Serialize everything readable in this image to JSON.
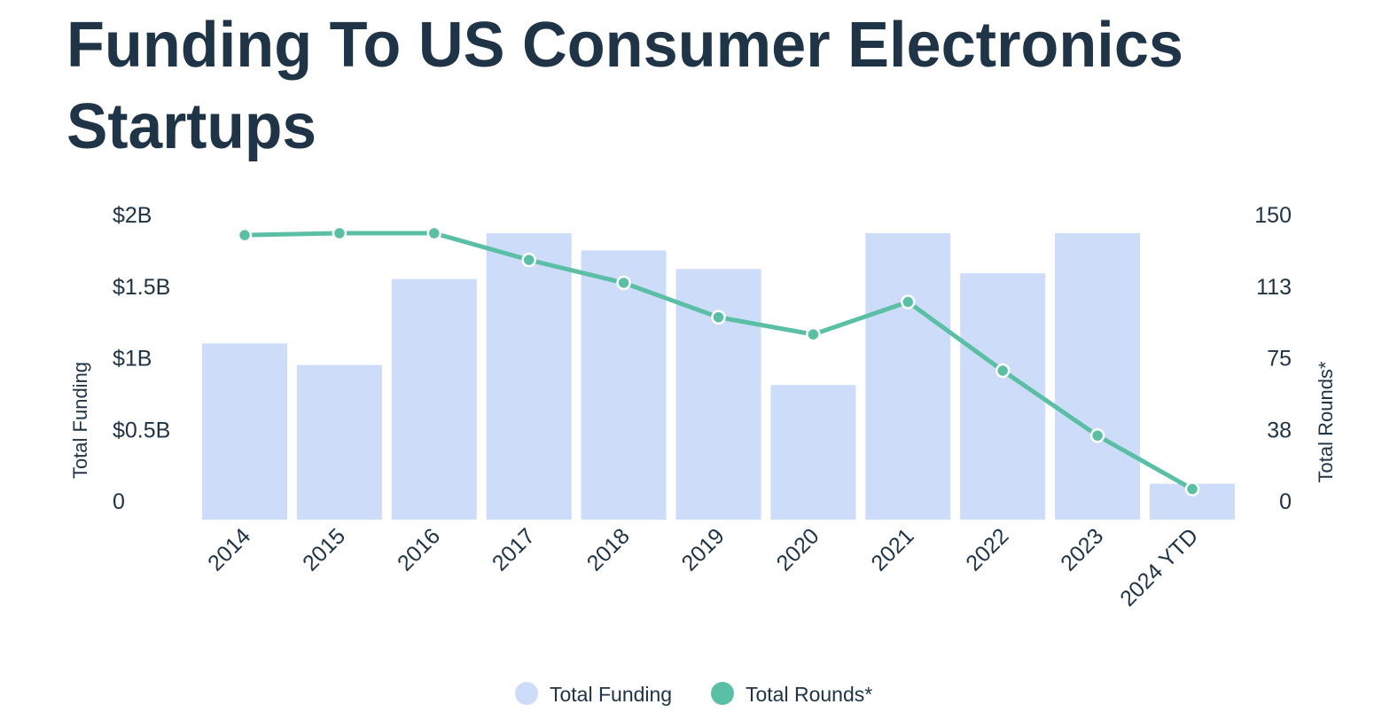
{
  "title": {
    "line1": "Funding To US Consumer Electronics",
    "line2": "Startups"
  },
  "colors": {
    "text": "#203447",
    "bar": "#CDDCF9",
    "line": "#5BBFA6"
  },
  "chart_data": {
    "type": "bar+line",
    "title": "Funding To US Consumer Electronics Startups",
    "categories": [
      "2014",
      "2015",
      "2016",
      "2017",
      "2018",
      "2019",
      "2020",
      "2021",
      "2022",
      "2023",
      "2024 YTD"
    ],
    "series": [
      {
        "name": "Total Funding",
        "type": "bar",
        "axis": "left",
        "unit": "$B",
        "values": [
          1.23,
          1.08,
          1.68,
          2.0,
          1.88,
          1.75,
          0.94,
          2.0,
          1.72,
          2.0,
          0.25
        ]
      },
      {
        "name": "Total Rounds*",
        "type": "line",
        "axis": "right",
        "values": [
          149,
          150,
          150,
          136,
          124,
          106,
          97,
          114,
          78,
          44,
          16
        ]
      }
    ],
    "left_axis": {
      "label": "Total Funding",
      "range": [
        0,
        2
      ],
      "ticks": [
        0,
        0.5,
        1,
        1.5,
        2
      ],
      "tick_labels": [
        "0",
        "$0.5B",
        "$1B",
        "$1.5B",
        "$2B"
      ]
    },
    "right_axis": {
      "label": "Total Rounds*",
      "range": [
        0,
        150
      ],
      "ticks": [
        0,
        38,
        75,
        113,
        150
      ],
      "tick_labels": [
        "0",
        "38",
        "75",
        "113",
        "150"
      ]
    },
    "xlabel": "",
    "grid": false,
    "legend": {
      "position": "bottom-center",
      "items": [
        "Total Funding",
        "Total Rounds*"
      ]
    }
  }
}
